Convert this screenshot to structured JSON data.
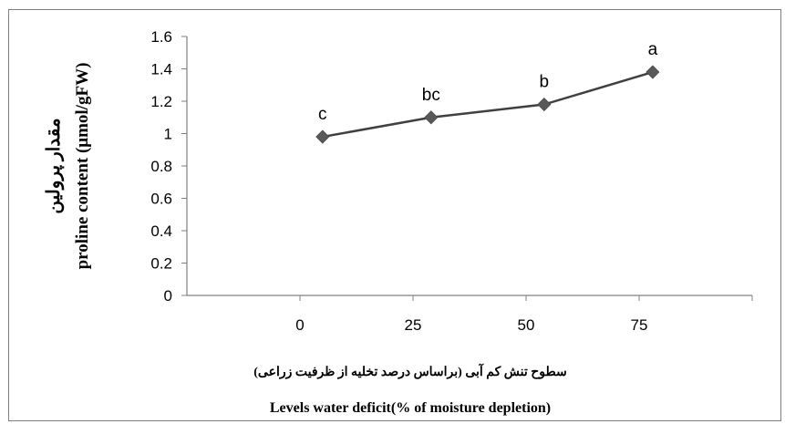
{
  "chart_data": {
    "type": "line",
    "title": "",
    "x_ticks": [
      "0",
      "25",
      "50",
      "75"
    ],
    "y_ticks": [
      "0",
      "0.2",
      "0.4",
      "0.6",
      "0.8",
      "1",
      "1.2",
      "1.4",
      "1.6"
    ],
    "xlim": [
      -25,
      100
    ],
    "ylim": [
      0,
      1.6
    ],
    "series": [
      {
        "x": [
          5,
          29,
          54,
          78
        ],
        "y": [
          0.98,
          1.1,
          1.18,
          1.38
        ],
        "point_labels": [
          "c",
          "bc",
          "b",
          "a"
        ]
      }
    ],
    "ylabel_persian": "مقدار پرولین",
    "ylabel_english": "proline content  (μmol/gFW)",
    "xlabel_persian": "سطوح تنش کم آبی (براساس درصد تخلیه از ظرفیت زراعی)",
    "xlabel_english": "Levels water deficit(% of moisture depletion)",
    "grid": false,
    "legend": "none",
    "line_color": "#404040",
    "marker_color": "#595959"
  }
}
